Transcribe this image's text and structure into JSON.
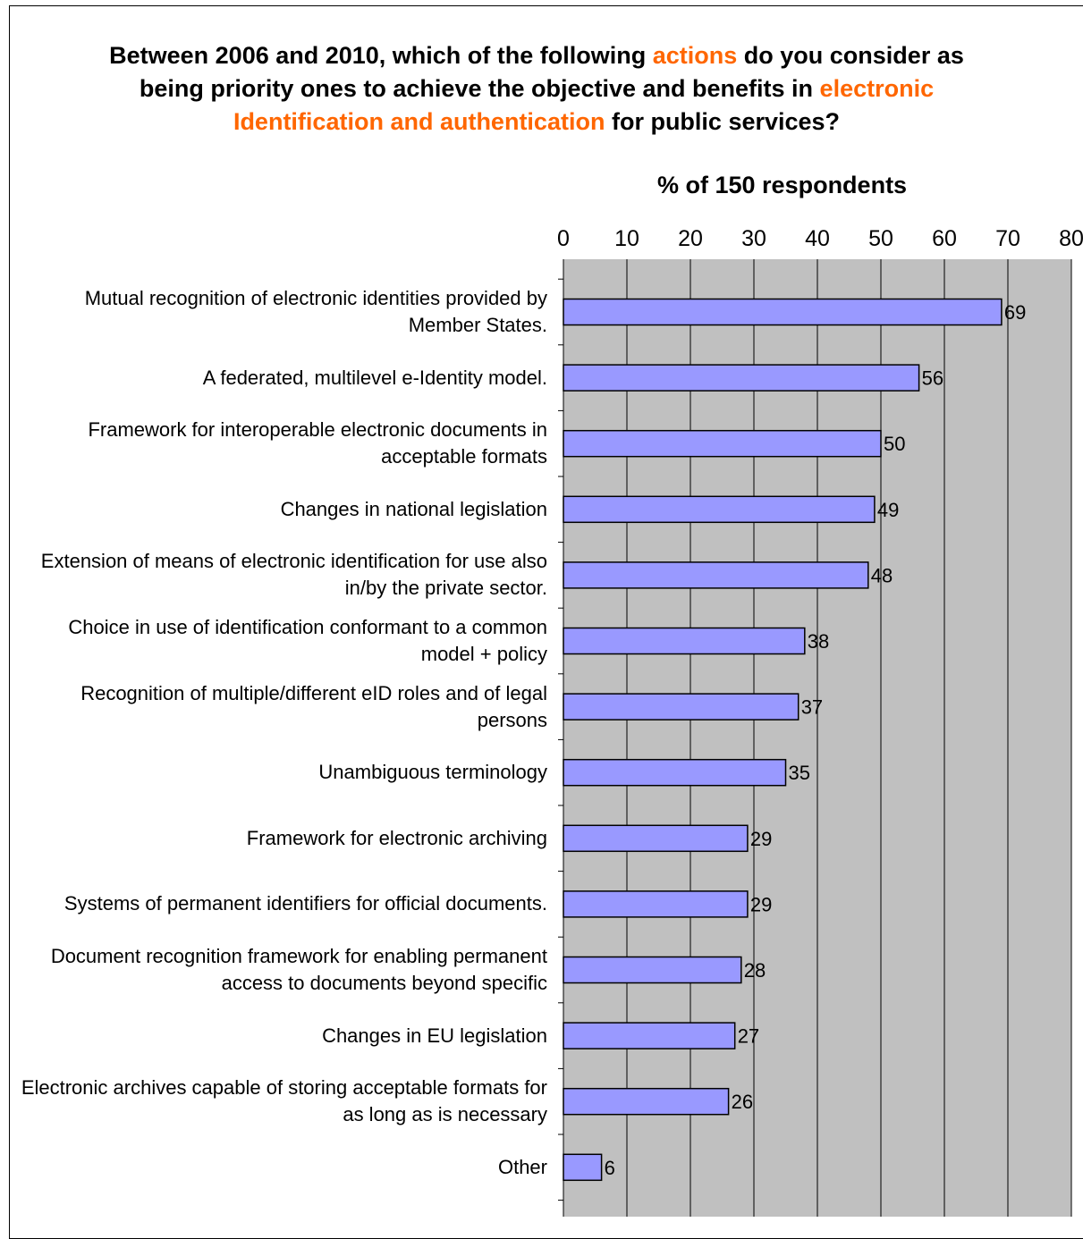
{
  "title": {
    "p1": "Between 2006 and 2010, which of the following ",
    "h1": "actions",
    "p2": " do you consider as being priority ones to achieve the objective and benefits in ",
    "h2": "electronic Identification and authentication",
    "p3": " for public services?"
  },
  "chart_data": {
    "type": "bar",
    "orientation": "horizontal",
    "subtitle": "% of 150 respondents",
    "xlim": [
      0,
      80
    ],
    "ticks": [
      "0",
      "10",
      "20",
      "30",
      "40",
      "50",
      "60",
      "70",
      "80"
    ],
    "grid": true,
    "categories": [
      "Mutual recognition of electronic identities provided by Member States.",
      "A federated, multilevel e-Identity model.",
      "Framework for interoperable electronic documents in acceptable formats",
      "Changes in national legislation",
      "Extension of means of electronic identification for use also in/by the private sector.",
      "Choice in use of identification conformant to a common model + policy",
      "Recognition of multiple/different eID roles and of legal persons",
      "Unambiguous terminology",
      "Framework for electronic archiving",
      "Systems of permanent identifiers for official documents.",
      "Document recognition framework for enabling permanent access to documents beyond specific",
      "Changes in EU legislation",
      "Electronic archives capable of storing acceptable formats for as long as is necessary",
      "Other"
    ],
    "values": [
      69,
      56,
      50,
      49,
      48,
      38,
      37,
      35,
      29,
      29,
      28,
      27,
      26,
      6
    ],
    "colors": {
      "bar": "#9999ff",
      "plot_bg": "#c0c0c0",
      "grid": "#000000",
      "highlight": "#ff6600"
    }
  }
}
